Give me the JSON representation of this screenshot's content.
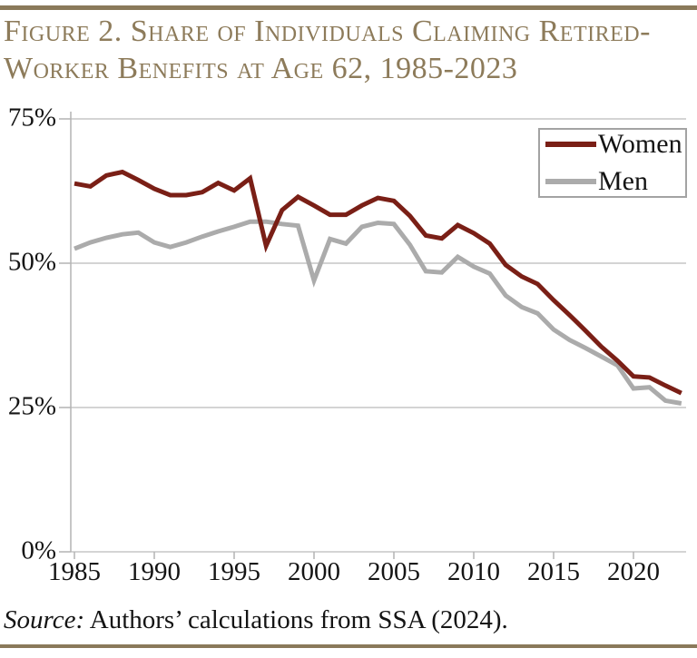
{
  "figure": {
    "title_line1": "Figure 2. Share of Individuals Claiming Retired-",
    "title_line2": "Worker Benefits at Age 62, 1985-2023",
    "source_prefix": "Source:",
    "source_rest": " Authors’ calculations from SSA (2024)."
  },
  "colors": {
    "accent_rule": "#8a795a",
    "title_text": "#8d7b5a",
    "women_line": "#7a1f16",
    "men_line": "#ababab",
    "gridline": "#c6c6c6",
    "axis": "#b3b3b3"
  },
  "legend": {
    "items": [
      {
        "label": "Women",
        "color": "#7a1f16"
      },
      {
        "label": "Men",
        "color": "#ababab"
      }
    ]
  },
  "axes": {
    "y_tick_labels": [
      "75%",
      "50%",
      "25%",
      "0%"
    ],
    "y_tick_values": [
      75,
      50,
      25,
      0
    ],
    "x_tick_labels": [
      "1985",
      "1990",
      "1995",
      "2000",
      "2005",
      "2010",
      "2015",
      "2020"
    ],
    "x_tick_values": [
      1985,
      1990,
      1995,
      2000,
      2005,
      2010,
      2015,
      2020
    ]
  },
  "chart_data": {
    "type": "line",
    "title": "Figure 2. Share of Individuals Claiming Retired-Worker Benefits at Age 62, 1985-2023",
    "xlabel": "",
    "ylabel": "",
    "ylim": [
      0,
      75
    ],
    "xlim": [
      1985,
      2023
    ],
    "grid": true,
    "legend_position": "top-right",
    "units": "percent",
    "x": [
      1985,
      1986,
      1987,
      1988,
      1989,
      1990,
      1991,
      1992,
      1993,
      1994,
      1995,
      1996,
      1997,
      1998,
      1999,
      2000,
      2001,
      2002,
      2003,
      2004,
      2005,
      2006,
      2007,
      2008,
      2009,
      2010,
      2011,
      2012,
      2013,
      2014,
      2015,
      2016,
      2017,
      2018,
      2019,
      2020,
      2021,
      2022,
      2023
    ],
    "series": [
      {
        "name": "Women",
        "color": "#7a1f16",
        "values": [
          63.8,
          63.3,
          65.2,
          65.8,
          64.4,
          62.9,
          61.8,
          61.8,
          62.3,
          63.9,
          62.6,
          64.7,
          53.0,
          59.2,
          61.5,
          60.0,
          58.4,
          58.4,
          60.0,
          61.3,
          60.8,
          58.2,
          54.8,
          54.3,
          56.6,
          55.2,
          53.4,
          49.7,
          47.7,
          46.4,
          43.6,
          41.0,
          38.3,
          35.5,
          33.1,
          30.4,
          30.2,
          28.8,
          27.5
        ]
      },
      {
        "name": "Men",
        "color": "#ababab",
        "values": [
          52.5,
          53.6,
          54.4,
          55.0,
          55.3,
          53.6,
          52.8,
          53.6,
          54.6,
          55.5,
          56.3,
          57.2,
          57.2,
          56.8,
          56.5,
          47.0,
          54.2,
          53.4,
          56.3,
          57.0,
          56.8,
          53.2,
          48.6,
          48.4,
          51.1,
          49.4,
          48.2,
          44.4,
          42.4,
          41.3,
          38.5,
          36.7,
          35.3,
          33.8,
          32.3,
          28.3,
          28.5,
          26.2,
          25.7
        ]
      }
    ]
  }
}
